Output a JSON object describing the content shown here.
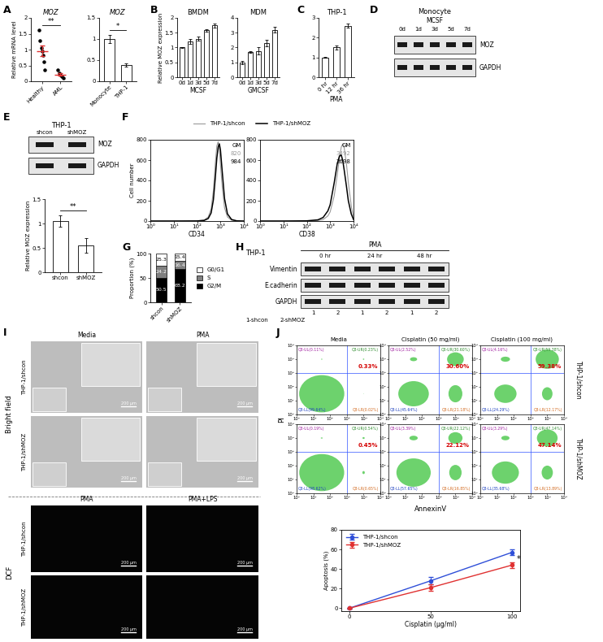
{
  "panel_labels": [
    "A",
    "B",
    "C",
    "D",
    "E",
    "F",
    "G",
    "H",
    "I",
    "J"
  ],
  "chart_data": [
    {
      "type": "scatter",
      "title": "MOZ",
      "ylabel": "Relative mRNA level",
      "categories": [
        "Healthy",
        "AML"
      ],
      "points": [
        [
          1.62,
          1.28,
          1.05,
          0.95,
          0.82,
          0.62,
          0.35
        ],
        [
          0.35,
          0.26,
          0.2,
          0.15,
          0.1
        ]
      ],
      "means": [
        0.96,
        0.21
      ],
      "errors": [
        0.16,
        0.04
      ],
      "color": "#e03131",
      "ylim": [
        0,
        2
      ],
      "yticks": [
        0,
        0.5,
        1,
        1.5,
        2
      ],
      "annotation": "**"
    },
    {
      "type": "bar",
      "title": "MOZ",
      "categories": [
        "Monocyte",
        "THP-1"
      ],
      "values": [
        1.0,
        0.38
      ],
      "errors": [
        0.1,
        0.04
      ],
      "color": "#ffffff",
      "ylim": [
        0,
        1.5
      ],
      "yticks": [
        0,
        0.5,
        1,
        1.5
      ],
      "annotation": "*"
    },
    {
      "type": "bar",
      "title": "BMDM",
      "ylabel": "Relative MOZ expression",
      "xlabel": "MCSF",
      "categories": [
        "0d",
        "1d",
        "3d",
        "5d",
        "7d"
      ],
      "values": [
        1.0,
        1.2,
        1.3,
        1.58,
        1.75
      ],
      "errors": [
        0.02,
        0.08,
        0.06,
        0.05,
        0.07
      ],
      "color": "#ffffff",
      "ylim": [
        0,
        2
      ],
      "yticks": [
        0,
        0.5,
        1,
        1.5,
        2
      ]
    },
    {
      "type": "bar",
      "title": "MDM",
      "xlabel": "GMCSF",
      "categories": [
        "0d",
        "1d",
        "3d",
        "5d",
        "7d"
      ],
      "values": [
        1.0,
        1.72,
        1.78,
        2.3,
        3.2
      ],
      "errors": [
        0.1,
        0.05,
        0.25,
        0.2,
        0.2
      ],
      "color": "#ffffff",
      "ylim": [
        0,
        4
      ],
      "yticks": [
        0,
        1,
        2,
        3,
        4
      ]
    },
    {
      "type": "bar",
      "title": "THP-1",
      "xlabel": "PMA",
      "categories": [
        "0 hr",
        "12 hr",
        "36 hr"
      ],
      "values": [
        1.0,
        1.5,
        2.6
      ],
      "errors": [
        0.02,
        0.12,
        0.1
      ],
      "color": "#ffffff",
      "ylim": [
        0,
        3
      ],
      "yticks": [
        0,
        1,
        2,
        3
      ]
    },
    {
      "type": "bar",
      "ylabel": "Relative MOZ expression",
      "categories": [
        "shcon",
        "shMOZ"
      ],
      "values": [
        1.05,
        0.55
      ],
      "errors": [
        0.12,
        0.15
      ],
      "color": "#ffffff",
      "ylim": [
        0,
        1.5
      ],
      "yticks": [
        0,
        0.5,
        1,
        1.5
      ],
      "annotation": "**"
    },
    {
      "type": "line",
      "xlabel": "CD34",
      "ylabel": "Cell number",
      "log": "x",
      "xlim": [
        1,
        10000
      ],
      "xticks": [
        {
          "value": 1,
          "label": "10⁰"
        },
        {
          "value": 10,
          "label": "10¹"
        },
        {
          "value": 100,
          "label": "10²"
        },
        {
          "value": 1000,
          "label": "10³"
        },
        {
          "value": 10000,
          "label": "10⁴"
        }
      ],
      "ylim": [
        0,
        800
      ],
      "yticks": [
        0,
        200,
        400,
        600,
        800
      ],
      "gm_label": "GM",
      "series": [
        {
          "name": "THP-1/shcon",
          "color": "#999999",
          "gm": 820,
          "x": [
            1,
            10,
            100,
            200,
            300,
            400,
            500,
            600,
            700,
            800,
            900,
            1000,
            1200,
            1500,
            2000,
            3000,
            5000,
            10000
          ],
          "values": [
            0,
            0,
            2,
            10,
            40,
            120,
            300,
            560,
            740,
            780,
            700,
            560,
            330,
            130,
            40,
            8,
            1,
            0
          ]
        },
        {
          "name": "THP-1/shMOZ",
          "color": "#000000",
          "gm": 984,
          "x": [
            1,
            10,
            100,
            200,
            300,
            400,
            500,
            600,
            700,
            800,
            900,
            1000,
            1200,
            1500,
            2000,
            3000,
            5000,
            10000
          ],
          "values": [
            0,
            0,
            1,
            6,
            25,
            80,
            210,
            420,
            620,
            730,
            760,
            700,
            480,
            220,
            70,
            15,
            2,
            0
          ]
        }
      ]
    },
    {
      "type": "line",
      "xlabel": "CD38",
      "log": "x",
      "xlim": [
        1,
        10000
      ],
      "xticks": [
        {
          "value": 1,
          "label": "10⁰"
        },
        {
          "value": 10,
          "label": "10¹"
        },
        {
          "value": 100,
          "label": "10²"
        },
        {
          "value": 1000,
          "label": "10³"
        },
        {
          "value": 10000,
          "label": "10⁴"
        }
      ],
      "ylim": [
        0,
        800
      ],
      "yticks": [
        0,
        200,
        400,
        600,
        800
      ],
      "gm_label": "GM",
      "series": [
        {
          "name": "THP-1/shcon",
          "color": "#999999",
          "gm": 3492,
          "x": [
            1,
            10,
            100,
            300,
            500,
            800,
            1000,
            1500,
            2000,
            2500,
            3000,
            3500,
            4000,
            5000,
            6000,
            8000,
            10000
          ],
          "values": [
            0,
            0,
            1,
            5,
            15,
            50,
            90,
            250,
            450,
            620,
            730,
            760,
            720,
            560,
            380,
            150,
            40
          ]
        },
        {
          "name": "THP-1/shMOZ",
          "color": "#000000",
          "gm": 2698,
          "x": [
            1,
            10,
            100,
            300,
            500,
            800,
            1000,
            1500,
            2000,
            2500,
            3000,
            3500,
            4000,
            5000,
            6000,
            8000,
            10000
          ],
          "values": [
            0,
            0,
            2,
            12,
            35,
            100,
            160,
            380,
            560,
            640,
            650,
            590,
            500,
            340,
            200,
            70,
            15
          ]
        }
      ]
    },
    {
      "type": "bar",
      "stacked": true,
      "data_labels": true,
      "legend": "right",
      "ylabel": "Proportion (%)",
      "categories": [
        "shcon",
        "shMOZ"
      ],
      "ylim": [
        0,
        100
      ],
      "yticks": [
        0,
        50,
        100
      ],
      "series": [
        {
          "name": "G2/M",
          "color": "#000000",
          "values": [
            50.5,
            68.2
          ]
        },
        {
          "name": "S",
          "color": "#808080",
          "values": [
            24.2,
            16.4
          ]
        },
        {
          "name": "G0/G1",
          "color": "#ffffff",
          "values": [
            25.3,
            15.4
          ]
        }
      ]
    },
    {
      "type": "line",
      "xlabel": "Cisplatin (μg/ml)",
      "ylabel": "Apoptosis (%)",
      "x": [
        0,
        50,
        100
      ],
      "xlim": [
        -5,
        105
      ],
      "xticks": [
        0,
        50,
        100
      ],
      "ylim": [
        -3,
        80
      ],
      "yticks": [
        0,
        20,
        40,
        60,
        80
      ],
      "legend": "upper left",
      "marker": "o",
      "annotation": "*",
      "series": [
        {
          "name": "THP-1/shcon",
          "color": "#2f4fd8",
          "values": [
            0,
            28,
            57
          ],
          "errors": [
            0.3,
            4,
            3
          ]
        },
        {
          "name": "THP-1/shMOZ",
          "color": "#e03131",
          "values": [
            0,
            21,
            44
          ],
          "errors": [
            0.3,
            3,
            3
          ]
        }
      ]
    }
  ],
  "blots": [
    {
      "title": "Monocyte",
      "treatment": "MCSF",
      "lanes": [
        "0d",
        "1d",
        "3d",
        "5d",
        "7d"
      ],
      "bands": [
        "MOZ",
        "GAPDH"
      ]
    },
    {
      "title": "THP-1",
      "lanes": [
        "shcon",
        "shMOZ"
      ],
      "bands": [
        "MOZ",
        "GAPDH"
      ]
    },
    {
      "title": "THP-1",
      "treatment": "PMA",
      "groups": [
        "0 hr",
        "24 hr",
        "48 hr"
      ],
      "lanes": [
        "1",
        "2",
        "1",
        "2",
        "1",
        "2"
      ],
      "bands": [
        "Vimentin",
        "E.cadherin",
        "GAPDH"
      ],
      "key": [
        "1-shcon",
        "2-shMOZ"
      ]
    }
  ],
  "micrographs": {
    "bright_field": {
      "label": "Bright field",
      "columns": [
        "Media",
        "PMA"
      ]
    },
    "dcf": {
      "label": "DCF",
      "columns": [
        "PMA",
        "PMA+LPS"
      ]
    },
    "rows": [
      "THP-1/shcon",
      "THP-1/shMOZ"
    ],
    "scale_bar": "200 μm"
  },
  "flow_cytometry": {
    "columns": [
      "Media",
      "Cisplatin (50 mg/ml)",
      "Cisplatin (100 mg/ml)"
    ],
    "rows": [
      "THP-1/shcon",
      "THP-1/shMOZ"
    ],
    "xlabel": "AnnexinV",
    "ylabel": "PI",
    "log": true,
    "xlim": [
      1,
      100000
    ],
    "ylim": [
      1,
      100000
    ],
    "xticks": [
      {
        "value": 1,
        "label": "10⁰"
      },
      {
        "value": 10,
        "label": "10¹"
      },
      {
        "value": 100,
        "label": "10²"
      },
      {
        "value": 1000,
        "label": "10³"
      },
      {
        "value": 10000,
        "label": "10⁴"
      },
      {
        "value": 100000,
        "label": "10⁵"
      }
    ],
    "yticks": [
      {
        "value": 1,
        "label": "10⁰"
      },
      {
        "value": 10,
        "label": "10¹"
      },
      {
        "value": 100,
        "label": "10²"
      },
      {
        "value": 1000,
        "label": "10³"
      },
      {
        "value": 10000,
        "label": "10⁴"
      },
      {
        "value": 100000,
        "label": "10⁵"
      }
    ],
    "gate": [
      1000,
      1000
    ],
    "plots": [
      [
        {
          "UL": {
            "value": 0.11,
            "label": "Q3-UL(0.11%)"
          },
          "UR": {
            "value": 0.23,
            "label": "Q3-UR(0.23%)"
          },
          "LL": {
            "value": 99.64,
            "label": "Q3-LL(99.64%)"
          },
          "LR": {
            "value": 0.02,
            "label": "Q3-LR(0.02%)"
          },
          "total": "0.33%"
        },
        {
          "UL": {
            "value": 2.52,
            "label": "Q3-UL(2.52%)"
          },
          "UR": {
            "value": 30.6,
            "label": "Q3-UR(30.60%)"
          },
          "LL": {
            "value": 45.64,
            "label": "Q3-LL(45.64%)"
          },
          "LR": {
            "value": 21.18,
            "label": "Q3-LR(21.18%)"
          },
          "total": "30.60%"
        },
        {
          "UL": {
            "value": 4.16,
            "label": "Q3-UL(4.16%)"
          },
          "UR": {
            "value": 59.38,
            "label": "Q3-UR(59.38%)"
          },
          "LL": {
            "value": 24.29,
            "label": "Q3-LL(24.29%)"
          },
          "LR": {
            "value": 12.17,
            "label": "Q3-LR(12.17%)"
          },
          "total": "59.38%"
        }
      ],
      [
        {
          "UL": {
            "value": 0.19,
            "label": "Q3-UL(0.19%)"
          },
          "UR": {
            "value": 0.54,
            "label": "Q3-UR(0.54%)"
          },
          "LL": {
            "value": 98.62,
            "label": "Q3-LL(98.62%)"
          },
          "LR": {
            "value": 0.65,
            "label": "Q3-LR(0.65%)"
          },
          "total": "0.45%"
        },
        {
          "UL": {
            "value": 3.39,
            "label": "Q3-UL(3.39%)"
          },
          "UR": {
            "value": 22.12,
            "label": "Q3-UR(22.12%)"
          },
          "LL": {
            "value": 57.65,
            "label": "Q3-LL(57.65%)"
          },
          "LR": {
            "value": 16.85,
            "label": "Q3-LR(16.85%)"
          },
          "total": "22.12%"
        },
        {
          "UL": {
            "value": 3.29,
            "label": "Q3-UL(3.29%)"
          },
          "UR": {
            "value": 47.14,
            "label": "Q3-UR(47.14%)"
          },
          "LL": {
            "value": 35.68,
            "label": "Q3-LL(35.68%)"
          },
          "LR": {
            "value": 13.89,
            "label": "Q3-LR(13.89%)"
          },
          "total": "47.14%"
        }
      ]
    ]
  }
}
